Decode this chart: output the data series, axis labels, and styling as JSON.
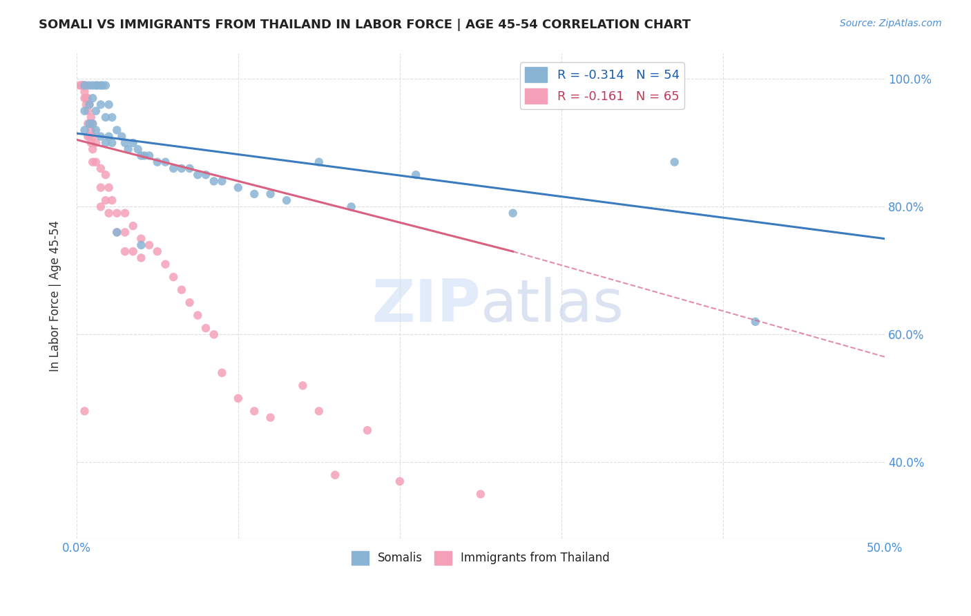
{
  "title": "SOMALI VS IMMIGRANTS FROM THAILAND IN LABOR FORCE | AGE 45-54 CORRELATION CHART",
  "source_text": "Source: ZipAtlas.com",
  "ylabel": "In Labor Force | Age 45-54",
  "xlim": [
    0.0,
    0.5
  ],
  "ylim": [
    0.28,
    1.04
  ],
  "xticks": [
    0.0,
    0.1,
    0.2,
    0.3,
    0.4,
    0.5
  ],
  "xtick_labels": [
    "0.0%",
    "",
    "",
    "",
    "",
    "50.0%"
  ],
  "yticks": [
    0.4,
    0.6,
    0.8,
    1.0
  ],
  "ytick_labels_right": [
    "40.0%",
    "60.0%",
    "80.0%",
    "100.0%"
  ],
  "legend_entries": [
    {
      "color": "#a8c4e0",
      "label": "R = -0.314   N = 54",
      "text_color": "#1a5cb0"
    },
    {
      "color": "#f5b8c8",
      "label": "R = -0.161   N = 65",
      "text_color": "#c0395a"
    }
  ],
  "legend_labels_bottom": [
    "Somalis",
    "Immigrants from Thailand"
  ],
  "blue_scatter": [
    [
      0.005,
      0.99
    ],
    [
      0.008,
      0.99
    ],
    [
      0.01,
      0.99
    ],
    [
      0.012,
      0.99
    ],
    [
      0.013,
      0.99
    ],
    [
      0.015,
      0.99
    ],
    [
      0.016,
      0.99
    ],
    [
      0.018,
      0.99
    ],
    [
      0.005,
      0.95
    ],
    [
      0.008,
      0.96
    ],
    [
      0.01,
      0.97
    ],
    [
      0.012,
      0.95
    ],
    [
      0.015,
      0.96
    ],
    [
      0.018,
      0.94
    ],
    [
      0.02,
      0.96
    ],
    [
      0.022,
      0.94
    ],
    [
      0.005,
      0.92
    ],
    [
      0.008,
      0.93
    ],
    [
      0.01,
      0.93
    ],
    [
      0.012,
      0.92
    ],
    [
      0.015,
      0.91
    ],
    [
      0.018,
      0.9
    ],
    [
      0.02,
      0.91
    ],
    [
      0.022,
      0.9
    ],
    [
      0.025,
      0.92
    ],
    [
      0.028,
      0.91
    ],
    [
      0.03,
      0.9
    ],
    [
      0.032,
      0.89
    ],
    [
      0.035,
      0.9
    ],
    [
      0.038,
      0.89
    ],
    [
      0.04,
      0.88
    ],
    [
      0.042,
      0.88
    ],
    [
      0.045,
      0.88
    ],
    [
      0.05,
      0.87
    ],
    [
      0.055,
      0.87
    ],
    [
      0.06,
      0.86
    ],
    [
      0.065,
      0.86
    ],
    [
      0.07,
      0.86
    ],
    [
      0.075,
      0.85
    ],
    [
      0.08,
      0.85
    ],
    [
      0.085,
      0.84
    ],
    [
      0.09,
      0.84
    ],
    [
      0.1,
      0.83
    ],
    [
      0.11,
      0.82
    ],
    [
      0.12,
      0.82
    ],
    [
      0.13,
      0.81
    ],
    [
      0.15,
      0.87
    ],
    [
      0.17,
      0.8
    ],
    [
      0.21,
      0.85
    ],
    [
      0.27,
      0.79
    ],
    [
      0.37,
      0.87
    ],
    [
      0.42,
      0.62
    ],
    [
      0.025,
      0.76
    ],
    [
      0.04,
      0.74
    ]
  ],
  "pink_scatter": [
    [
      0.002,
      0.99
    ],
    [
      0.003,
      0.99
    ],
    [
      0.003,
      0.99
    ],
    [
      0.004,
      0.99
    ],
    [
      0.004,
      0.99
    ],
    [
      0.004,
      0.99
    ],
    [
      0.005,
      0.99
    ],
    [
      0.005,
      0.98
    ],
    [
      0.005,
      0.97
    ],
    [
      0.006,
      0.99
    ],
    [
      0.006,
      0.97
    ],
    [
      0.006,
      0.96
    ],
    [
      0.007,
      0.97
    ],
    [
      0.007,
      0.95
    ],
    [
      0.007,
      0.93
    ],
    [
      0.007,
      0.91
    ],
    [
      0.008,
      0.96
    ],
    [
      0.008,
      0.93
    ],
    [
      0.008,
      0.91
    ],
    [
      0.009,
      0.94
    ],
    [
      0.009,
      0.92
    ],
    [
      0.009,
      0.9
    ],
    [
      0.01,
      0.93
    ],
    [
      0.01,
      0.91
    ],
    [
      0.01,
      0.89
    ],
    [
      0.01,
      0.87
    ],
    [
      0.012,
      0.9
    ],
    [
      0.012,
      0.87
    ],
    [
      0.015,
      0.86
    ],
    [
      0.015,
      0.83
    ],
    [
      0.015,
      0.8
    ],
    [
      0.018,
      0.85
    ],
    [
      0.018,
      0.81
    ],
    [
      0.02,
      0.83
    ],
    [
      0.02,
      0.79
    ],
    [
      0.022,
      0.81
    ],
    [
      0.025,
      0.79
    ],
    [
      0.025,
      0.76
    ],
    [
      0.03,
      0.79
    ],
    [
      0.03,
      0.76
    ],
    [
      0.03,
      0.73
    ],
    [
      0.035,
      0.77
    ],
    [
      0.035,
      0.73
    ],
    [
      0.04,
      0.75
    ],
    [
      0.04,
      0.72
    ],
    [
      0.045,
      0.74
    ],
    [
      0.05,
      0.73
    ],
    [
      0.055,
      0.71
    ],
    [
      0.06,
      0.69
    ],
    [
      0.065,
      0.67
    ],
    [
      0.07,
      0.65
    ],
    [
      0.075,
      0.63
    ],
    [
      0.08,
      0.61
    ],
    [
      0.085,
      0.6
    ],
    [
      0.09,
      0.54
    ],
    [
      0.1,
      0.5
    ],
    [
      0.11,
      0.48
    ],
    [
      0.12,
      0.47
    ],
    [
      0.14,
      0.52
    ],
    [
      0.15,
      0.48
    ],
    [
      0.16,
      0.38
    ],
    [
      0.18,
      0.45
    ],
    [
      0.2,
      0.37
    ],
    [
      0.25,
      0.35
    ],
    [
      0.005,
      0.48
    ]
  ],
  "blue_line": {
    "x": [
      0.0,
      0.5
    ],
    "y": [
      0.915,
      0.75
    ]
  },
  "pink_line": {
    "x": [
      0.0,
      0.27
    ],
    "y": [
      0.905,
      0.73
    ]
  },
  "pink_dashed_line": {
    "x": [
      0.27,
      0.5
    ],
    "y": [
      0.73,
      0.565
    ]
  },
  "scatter_color_blue": "#8ab4d4",
  "scatter_color_pink": "#f4a0b8",
  "line_color_blue": "#3a7abf",
  "line_color_pink": "#d96080",
  "watermark_color": "#cddff5",
  "background_color": "#ffffff",
  "grid_color": "#d8d8d8"
}
